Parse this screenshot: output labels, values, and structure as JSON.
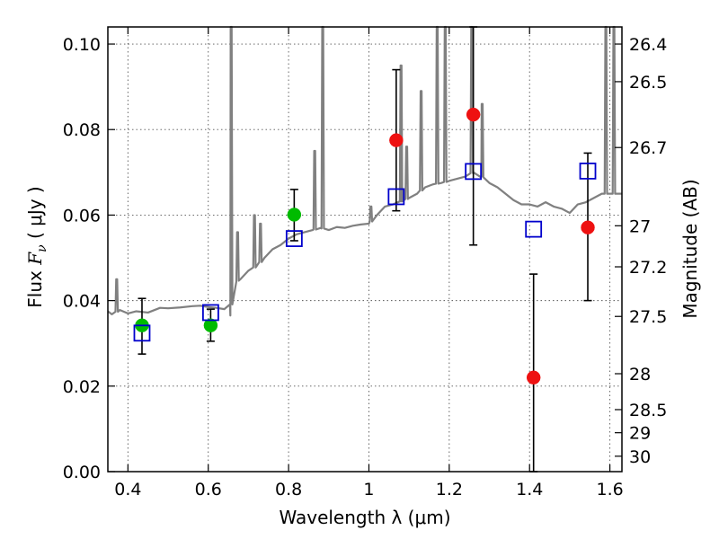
{
  "chart_data": {
    "type": "scatter",
    "xlabel": "Wavelength  λ (μm)",
    "ylabel_parts": {
      "prefix": "Flux  ",
      "symbol": "F",
      "subscript": "ν",
      "unit": "  ( μJy )"
    },
    "ylabel2": "Magnitude (AB)",
    "xlim": [
      0.35,
      1.63
    ],
    "ylim": [
      0.0,
      0.104
    ],
    "grid": true,
    "x_ticks": [
      0.4,
      0.6,
      0.8,
      1.0,
      1.2,
      1.4,
      1.6
    ],
    "x_tick_labels": [
      "0.4",
      "0.6",
      "0.8",
      "1",
      "1.2",
      "1.4",
      "1.6"
    ],
    "y_ticks": [
      0.0,
      0.02,
      0.04,
      0.06,
      0.08,
      0.1
    ],
    "y_tick_labels": [
      "0.00",
      "0.02",
      "0.04",
      "0.06",
      "0.08",
      "0.10"
    ],
    "mag_ticks": [
      {
        "label": "26.4",
        "flux": 0.1
      },
      {
        "label": "26.5",
        "flux": 0.0912
      },
      {
        "label": "26.7",
        "flux": 0.0758
      },
      {
        "label": "27",
        "flux": 0.0575
      },
      {
        "label": "27.2",
        "flux": 0.0479
      },
      {
        "label": "27.5",
        "flux": 0.0363
      },
      {
        "label": "28",
        "flux": 0.0229
      },
      {
        "label": "28.5",
        "flux": 0.0145
      },
      {
        "label": "29",
        "flux": 0.0091
      },
      {
        "label": "30",
        "flux": 0.0036
      }
    ],
    "colors": {
      "model": "#808080",
      "green": "#00bb00",
      "red": "#ee1111",
      "blue": "#0000cc",
      "grid": "#555555"
    },
    "series": [
      {
        "name": "green_points",
        "marker": "circle",
        "points": [
          {
            "x": 0.435,
            "y": 0.0342,
            "err_lo": 0.0275,
            "err_hi": 0.0405
          },
          {
            "x": 0.606,
            "y": 0.0342,
            "err_lo": 0.0305,
            "err_hi": 0.038
          },
          {
            "x": 0.814,
            "y": 0.0601,
            "err_lo": 0.054,
            "err_hi": 0.066
          }
        ]
      },
      {
        "name": "red_points",
        "marker": "circle",
        "points": [
          {
            "x": 1.068,
            "y": 0.0775,
            "err_lo": 0.061,
            "err_hi": 0.094
          },
          {
            "x": 1.26,
            "y": 0.0835,
            "err_lo": 0.053,
            "err_hi": 0.104
          },
          {
            "x": 1.41,
            "y": 0.022,
            "err_lo": 0.0,
            "err_hi": 0.0462
          },
          {
            "x": 1.545,
            "y": 0.0571,
            "err_lo": 0.04,
            "err_hi": 0.0745
          }
        ]
      },
      {
        "name": "model_photometry",
        "marker": "open-square",
        "points": [
          {
            "x": 0.435,
            "y": 0.0324
          },
          {
            "x": 0.606,
            "y": 0.0372
          },
          {
            "x": 0.814,
            "y": 0.0545
          },
          {
            "x": 1.068,
            "y": 0.0643
          },
          {
            "x": 1.26,
            "y": 0.0702
          },
          {
            "x": 1.41,
            "y": 0.0567
          },
          {
            "x": 1.545,
            "y": 0.0703
          }
        ]
      }
    ],
    "model_spectrum": {
      "name": "SED model",
      "continuum": [
        [
          0.35,
          0.0375
        ],
        [
          0.36,
          0.0368
        ],
        [
          0.38,
          0.0378
        ],
        [
          0.4,
          0.037
        ],
        [
          0.42,
          0.0375
        ],
        [
          0.45,
          0.0372
        ],
        [
          0.48,
          0.0383
        ],
        [
          0.5,
          0.0382
        ],
        [
          0.53,
          0.0384
        ],
        [
          0.56,
          0.0387
        ],
        [
          0.58,
          0.0388
        ],
        [
          0.6,
          0.0385
        ],
        [
          0.62,
          0.0383
        ],
        [
          0.64,
          0.038
        ],
        [
          0.655,
          0.0365
        ],
        [
          0.66,
          0.043
        ],
        [
          0.67,
          0.0445
        ],
        [
          0.68,
          0.045
        ],
        [
          0.7,
          0.047
        ],
        [
          0.72,
          0.048
        ],
        [
          0.74,
          0.05
        ],
        [
          0.76,
          0.052
        ],
        [
          0.78,
          0.053
        ],
        [
          0.8,
          0.0545
        ],
        [
          0.82,
          0.0555
        ],
        [
          0.84,
          0.056
        ],
        [
          0.86,
          0.0565
        ],
        [
          0.88,
          0.057
        ],
        [
          0.9,
          0.0565
        ],
        [
          0.92,
          0.0572
        ],
        [
          0.94,
          0.057
        ],
        [
          0.96,
          0.0575
        ],
        [
          0.98,
          0.0578
        ],
        [
          1.0,
          0.058
        ],
        [
          1.02,
          0.06
        ],
        [
          1.04,
          0.062
        ],
        [
          1.06,
          0.0625
        ],
        [
          1.08,
          0.0632
        ],
        [
          1.1,
          0.064
        ],
        [
          1.12,
          0.065
        ],
        [
          1.14,
          0.0665
        ],
        [
          1.16,
          0.0672
        ],
        [
          1.18,
          0.0675
        ],
        [
          1.2,
          0.068
        ],
        [
          1.22,
          0.0685
        ],
        [
          1.24,
          0.069
        ],
        [
          1.26,
          0.07
        ],
        [
          1.28,
          0.069
        ],
        [
          1.3,
          0.0675
        ],
        [
          1.32,
          0.0665
        ],
        [
          1.34,
          0.065
        ],
        [
          1.36,
          0.0635
        ],
        [
          1.38,
          0.0625
        ],
        [
          1.4,
          0.0625
        ],
        [
          1.42,
          0.062
        ],
        [
          1.44,
          0.063
        ],
        [
          1.46,
          0.062
        ],
        [
          1.48,
          0.0615
        ],
        [
          1.5,
          0.0605
        ],
        [
          1.52,
          0.0625
        ],
        [
          1.54,
          0.063
        ],
        [
          1.56,
          0.064
        ],
        [
          1.58,
          0.065
        ],
        [
          1.6,
          0.065
        ],
        [
          1.63,
          0.065
        ]
      ],
      "lines": [
        {
          "x": 0.372,
          "peak": 0.045
        },
        {
          "x": 0.657,
          "peak": 0.104
        },
        {
          "x": 0.673,
          "peak": 0.056
        },
        {
          "x": 0.715,
          "peak": 0.06
        },
        {
          "x": 0.73,
          "peak": 0.058
        },
        {
          "x": 0.865,
          "peak": 0.075
        },
        {
          "x": 0.885,
          "peak": 0.104
        },
        {
          "x": 1.005,
          "peak": 0.062
        },
        {
          "x": 1.08,
          "peak": 0.095
        },
        {
          "x": 1.094,
          "peak": 0.076
        },
        {
          "x": 1.13,
          "peak": 0.089
        },
        {
          "x": 1.17,
          "peak": 0.104
        },
        {
          "x": 1.19,
          "peak": 0.104
        },
        {
          "x": 1.256,
          "peak": 0.104
        },
        {
          "x": 1.282,
          "peak": 0.086
        },
        {
          "x": 1.59,
          "peak": 0.104
        },
        {
          "x": 1.61,
          "peak": 0.104
        }
      ]
    }
  }
}
